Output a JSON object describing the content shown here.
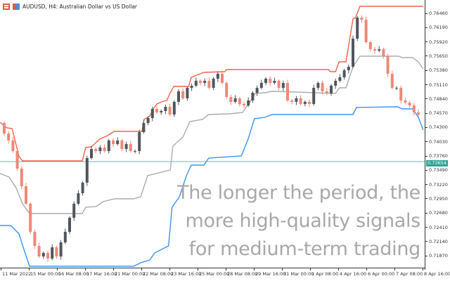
{
  "window": {
    "icons": [
      "grid-menu-icon",
      "chart-type-icon"
    ],
    "title": "AUDUSD, H4:  Australian Dollar vs US Dollar"
  },
  "colors": {
    "bull": "#50565c",
    "bear": "#ef8878",
    "upper_line": "#f4634c",
    "middle_line": "#ababab",
    "lower_line": "#3d93f2",
    "current_price": "#2fa595"
  },
  "overlay_text": [
    "The longer the period, the",
    "more high-quality signals",
    "for medium-term trading"
  ],
  "chart_data": {
    "type": "candlestick",
    "symbol": "AUDUSD",
    "timeframe": "H4",
    "current_price": "0.73654",
    "first_open": 0.74385,
    "closes": [
      0.74186,
      0.74053,
      0.73853,
      0.73521,
      0.73188,
      0.72856,
      0.72324,
      0.72058,
      0.71858,
      0.71925,
      0.71818,
      0.72031,
      0.71858,
      0.72124,
      0.72324,
      0.7259,
      0.72856,
      0.73055,
      0.73255,
      0.7372,
      0.73893,
      0.73853,
      0.7392,
      0.73853,
      0.74053,
      0.73986,
      0.74053,
      0.73893,
      0.73986,
      0.73853,
      0.73853,
      0.74212,
      0.74385,
      0.74478,
      0.74651,
      0.74585,
      0.74611,
      0.74691,
      0.74545,
      0.74784,
      0.74984,
      0.74851,
      0.7505,
      0.7509,
      0.75183,
      0.75143,
      0.75183,
      0.7505,
      0.75223,
      0.75316,
      0.75143,
      0.74877,
      0.74784,
      0.74851,
      0.74744,
      0.74718,
      0.74811,
      0.74957,
      0.7505,
      0.75143,
      0.75223,
      0.75143,
      0.75183,
      0.7505,
      0.75143,
      0.74811,
      0.74784,
      0.74851,
      0.74744,
      0.74784,
      0.74744,
      0.7505,
      0.75143,
      0.74984,
      0.74944,
      0.7509,
      0.75183,
      0.7525,
      0.75383,
      0.75449,
      0.75981,
      0.7638,
      0.7634,
      0.75915,
      0.75782,
      0.75755,
      0.75782,
      0.75649,
      0.75316,
      0.7505,
      0.7505,
      0.74811,
      0.74771,
      0.74718,
      0.74585,
      0.74545
    ],
    "channel": {
      "upper": [
        [
          -1,
          0.74399
        ],
        [
          0.6,
          0.74292
        ],
        [
          1.8,
          0.74279
        ],
        [
          3.4,
          0.73747
        ],
        [
          4.2,
          0.73667
        ],
        [
          17.9,
          0.73667
        ],
        [
          18.7,
          0.7392
        ],
        [
          20,
          0.73933
        ],
        [
          21.9,
          0.7408
        ],
        [
          23.7,
          0.74146
        ],
        [
          25.2,
          0.74226
        ],
        [
          31.6,
          0.74226
        ],
        [
          32.1,
          0.74452
        ],
        [
          33.4,
          0.74518
        ],
        [
          34,
          0.74625
        ],
        [
          35,
          0.74745
        ],
        [
          36.1,
          0.74785
        ],
        [
          37.3,
          0.74811
        ],
        [
          38.1,
          0.74957
        ],
        [
          38.9,
          0.75077
        ],
        [
          42.3,
          0.75077
        ],
        [
          42.9,
          0.7525
        ],
        [
          45.8,
          0.75343
        ],
        [
          50.6,
          0.75357
        ],
        [
          51,
          0.75396
        ],
        [
          74.4,
          0.75396
        ],
        [
          74.8,
          0.75357
        ],
        [
          76,
          0.75357
        ],
        [
          76.8,
          0.75543
        ],
        [
          78.4,
          0.75543
        ],
        [
          80,
          0.76354
        ],
        [
          80.6,
          0.7638
        ],
        [
          81.6,
          0.76593
        ],
        [
          96.1,
          0.76593
        ]
      ],
      "middle": [
        [
          -1,
          0.73428
        ],
        [
          1.1,
          0.73361
        ],
        [
          2.7,
          0.73162
        ],
        [
          4.2,
          0.72856
        ],
        [
          5.8,
          0.7267
        ],
        [
          17.9,
          0.7267
        ],
        [
          18.7,
          0.7279
        ],
        [
          21.1,
          0.72803
        ],
        [
          22.7,
          0.72896
        ],
        [
          25.3,
          0.72949
        ],
        [
          29.7,
          0.72949
        ],
        [
          31.3,
          0.72989
        ],
        [
          32.9,
          0.73388
        ],
        [
          38.1,
          0.73494
        ],
        [
          38.7,
          0.73947
        ],
        [
          41,
          0.7412
        ],
        [
          42.6,
          0.74412
        ],
        [
          45.5,
          0.74452
        ],
        [
          46.9,
          0.74545
        ],
        [
          51.8,
          0.74558
        ],
        [
          54.7,
          0.74585
        ],
        [
          56.6,
          0.74811
        ],
        [
          57.6,
          0.74944
        ],
        [
          59.8,
          0.74957
        ],
        [
          61.5,
          0.74984
        ],
        [
          66.8,
          0.74971
        ],
        [
          76,
          0.74944
        ],
        [
          76.9,
          0.7505
        ],
        [
          78.4,
          0.7505
        ],
        [
          80,
          0.7545
        ],
        [
          81.6,
          0.75649
        ],
        [
          90.5,
          0.75649
        ],
        [
          91.3,
          0.75622
        ],
        [
          93.7,
          0.75622
        ],
        [
          95,
          0.75543
        ],
        [
          96.1,
          0.7541
        ]
      ],
      "lower": [
        [
          -1,
          0.72444
        ],
        [
          1.5,
          0.72444
        ],
        [
          3.4,
          0.72284
        ],
        [
          4.4,
          0.72018
        ],
        [
          5.8,
          0.71672
        ],
        [
          29.7,
          0.71672
        ],
        [
          31.3,
          0.71739
        ],
        [
          33.4,
          0.71792
        ],
        [
          34.5,
          0.71925
        ],
        [
          37.7,
          0.72058
        ],
        [
          38.5,
          0.7279
        ],
        [
          40.2,
          0.72989
        ],
        [
          41.8,
          0.73388
        ],
        [
          42.9,
          0.73588
        ],
        [
          45.8,
          0.73588
        ],
        [
          46.9,
          0.73721
        ],
        [
          54.4,
          0.7376
        ],
        [
          56,
          0.74093
        ],
        [
          57.4,
          0.74465
        ],
        [
          59.8,
          0.74492
        ],
        [
          61.5,
          0.74545
        ],
        [
          80,
          0.74545
        ],
        [
          80.8,
          0.74678
        ],
        [
          90.2,
          0.74691
        ],
        [
          91.3,
          0.74652
        ],
        [
          93.7,
          0.74652
        ],
        [
          95,
          0.74492
        ],
        [
          96.1,
          0.74253
        ]
      ]
    },
    "y_ticks": [
      "0.76460",
      "0.76190",
      "0.75920",
      "0.75650",
      "0.75380",
      "0.75110",
      "0.74840",
      "0.74570",
      "0.74300",
      "0.74030",
      "0.73760",
      "0.73490",
      "0.73220",
      "0.72950",
      "0.72680",
      "0.72410",
      "0.72140",
      "0.71870"
    ],
    "x_ticks": [
      "11 Mar 2022",
      "15 Mar 00:00",
      "16 Mar 08:00",
      "17 Mar 16:00",
      "21 Mar 00:00",
      "22 Mar 08:00",
      "23 Mar 16:00",
      "25 Mar 00:00",
      "28 Mar 08:00",
      "29 Mar 16:00",
      "31 Mar 00:00",
      "1 Apr 08:00",
      "4 Apr 16:00",
      "6 Apr 00:00",
      "7 Apr 08:00",
      "8 Apr 16:00"
    ],
    "grid": false
  }
}
